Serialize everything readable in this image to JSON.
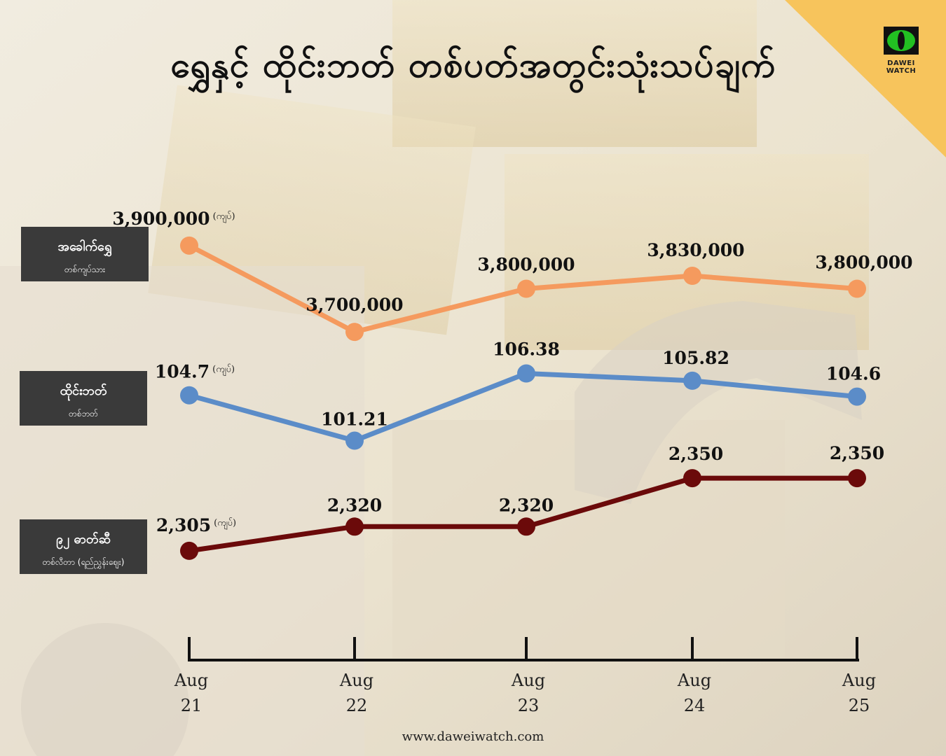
{
  "title": "ရွှေနှင့် ထိုင်းဘတ် တစ်ပတ်အတွင်းသုံးသပ်ချက်",
  "logo": {
    "text": "DAWEI WATCH",
    "icon": "cat-eye-icon"
  },
  "footer": "www.daweiwatch.com",
  "colors": {
    "gold": "#f59a5e",
    "baht": "#5b8cc8",
    "fuel": "#6b0a0a",
    "accent": "#f7c45c"
  },
  "labels": [
    {
      "main": "အခေါက်ရွှေ",
      "sub": "တစ်ကျပ်သား"
    },
    {
      "main": "ထိုင်းဘတ်",
      "sub": "တစ်ဘတ်"
    },
    {
      "main": "၉၂ ဓာတ်ဆီ",
      "sub": "တစ်လီတာ (ရည်ညွှန်းဈေး)"
    }
  ],
  "chart_data": {
    "type": "line",
    "unit_suffix": "(ကျပ်)",
    "categories": [
      [
        "Aug",
        "21"
      ],
      [
        "Aug",
        "22"
      ],
      [
        "Aug",
        "23"
      ],
      [
        "Aug",
        "24"
      ],
      [
        "Aug",
        "25"
      ]
    ],
    "series": [
      {
        "name": "အခေါက်ရွှေ",
        "values": [
          3900000,
          3700000,
          3800000,
          3830000,
          3800000
        ],
        "labels": [
          "3,900,000",
          "3,700,000",
          "3,800,000",
          "3,830,000",
          "3,800,000"
        ]
      },
      {
        "name": "ထိုင်းဘတ်",
        "values": [
          104.7,
          101.21,
          106.38,
          105.82,
          104.6
        ],
        "labels": [
          "104.7",
          "101.21",
          "106.38",
          "105.82",
          "104.6"
        ]
      },
      {
        "name": "၉၂ ဓာတ်ဆီ",
        "values": [
          2305,
          2320,
          2320,
          2350,
          2350
        ],
        "labels": [
          "2,305",
          "2,320",
          "2,320",
          "2,350",
          "2,350"
        ]
      }
    ]
  }
}
